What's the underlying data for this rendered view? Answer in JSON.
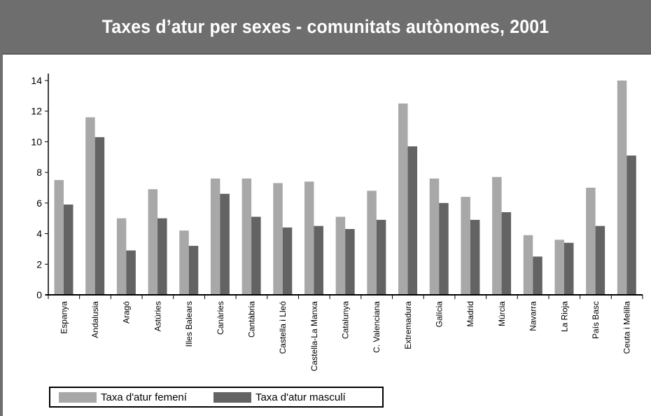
{
  "title": "Taxes d’atur per sexes - comunitats autònomes, 2001",
  "colors": {
    "female": "#a8a8a8",
    "male": "#636363",
    "frame": "#6e6e6e"
  },
  "legend": {
    "female_label": "Taxa d'atur femení",
    "male_label": "Taxa d'atur masculí"
  },
  "chart_data": {
    "type": "bar",
    "title": "Taxes d’atur per sexes - comunitats autònomes, 2001",
    "xlabel": "",
    "ylabel": "",
    "ylim": [
      0,
      14
    ],
    "yticks": [
      0,
      2,
      4,
      6,
      8,
      10,
      12,
      14
    ],
    "grid": false,
    "legend_position": "bottom-left",
    "categories": [
      "Espanya",
      "Andalusia",
      "Aragó",
      "Astúries",
      "Illes Balears",
      "Canàries",
      "Cantàbria",
      "Castella i Lleó",
      "Castella-La Manxa",
      "Catalunya",
      "C. Valenciana",
      "Extremadura",
      "Galícia",
      "Madrid",
      "Múrcia",
      "Navarra",
      "La Rioja",
      "País Basc",
      "Ceuta i Melilla"
    ],
    "series": [
      {
        "name": "Taxa d'atur femení",
        "values": [
          7.5,
          11.6,
          5.0,
          6.9,
          4.2,
          7.6,
          7.6,
          7.3,
          7.4,
          5.1,
          6.8,
          12.5,
          7.6,
          6.4,
          7.7,
          3.9,
          3.6,
          7.0,
          14.0
        ]
      },
      {
        "name": "Taxa d'atur masculí",
        "values": [
          5.9,
          10.3,
          2.9,
          5.0,
          3.2,
          6.6,
          5.1,
          4.4,
          4.5,
          4.3,
          4.9,
          9.7,
          6.0,
          4.9,
          5.4,
          2.5,
          3.4,
          4.5,
          9.1
        ]
      }
    ]
  }
}
